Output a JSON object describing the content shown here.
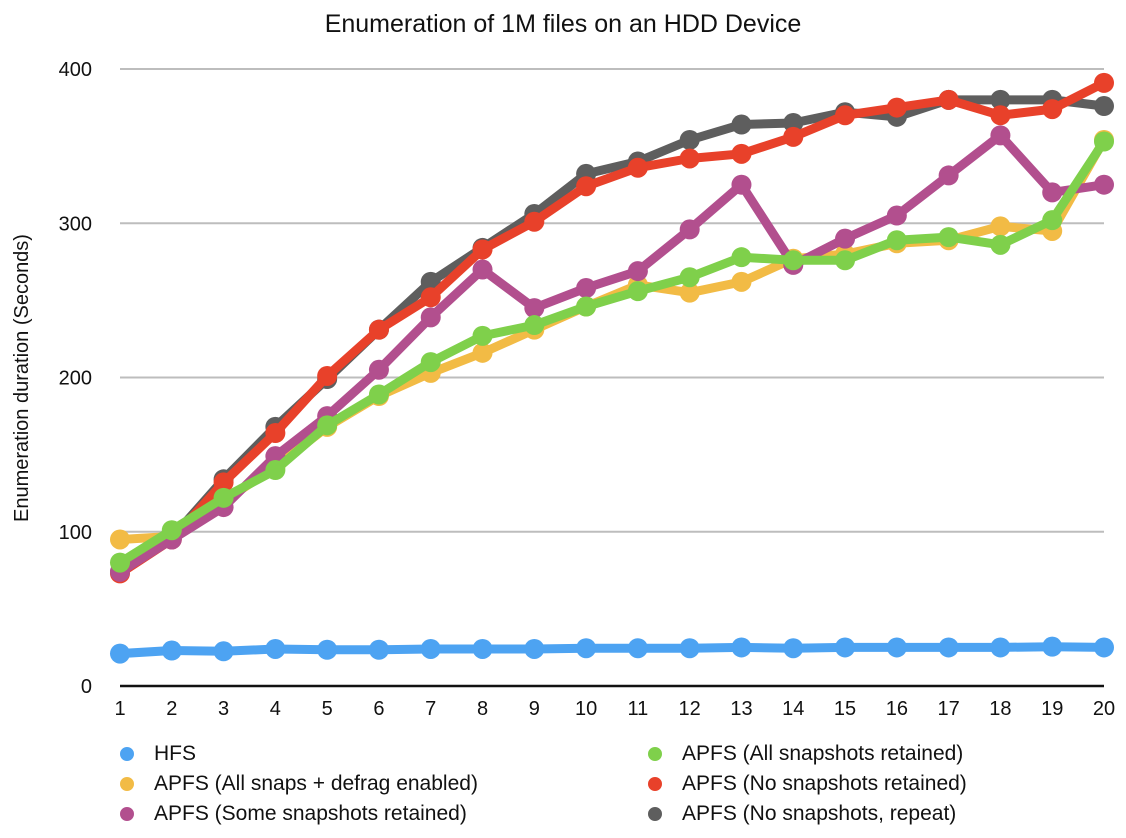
{
  "chart_data": {
    "type": "line",
    "title": "Enumeration of 1M files on an HDD Device",
    "xlabel": "",
    "ylabel": "Enumeration duration (Seconds)",
    "ylim": [
      0,
      400
    ],
    "yticks": [
      0,
      100,
      200,
      300,
      400
    ],
    "grid": true,
    "legend_position": "bottom",
    "x": [
      1,
      2,
      3,
      4,
      5,
      6,
      7,
      8,
      9,
      10,
      11,
      12,
      13,
      14,
      15,
      16,
      17,
      18,
      19,
      20
    ],
    "series": [
      {
        "name": "HFS",
        "color": "#4DA3F2",
        "values": [
          21,
          23,
          22.5,
          24,
          23.5,
          23.5,
          24,
          24,
          24,
          24.5,
          24.5,
          24.5,
          25,
          24.5,
          25,
          25,
          25,
          25,
          25.5,
          25
        ]
      },
      {
        "name": "APFS (All snaps + defrag enabled)",
        "color": "#F2BB45",
        "values": [
          95,
          97,
          120,
          142,
          168,
          188,
          203,
          216,
          231,
          246,
          260,
          255,
          262,
          277,
          280,
          287,
          289,
          298,
          295,
          354
        ]
      },
      {
        "name": "APFS (Some snapshots retained)",
        "color": "#B24F8E",
        "values": [
          74,
          95,
          116,
          149,
          175,
          205,
          239,
          270,
          245,
          258,
          269,
          296,
          325,
          273,
          290,
          305,
          331,
          357,
          320,
          325
        ]
      },
      {
        "name": "APFS (All snapshots retained)",
        "color": "#7FD04B",
        "values": [
          80,
          101,
          122,
          140,
          169,
          189,
          210,
          227,
          234,
          246,
          256,
          265,
          278,
          276,
          276,
          289,
          291,
          286,
          302,
          353
        ]
      },
      {
        "name": "APFS (No snapshots retained)",
        "color": "#E8412A",
        "values": [
          73,
          95,
          132,
          164,
          201,
          231,
          252,
          283,
          301,
          324,
          336,
          342,
          345,
          356,
          370,
          375,
          380,
          370,
          374,
          391
        ]
      },
      {
        "name": "APFS (No snapshots, repeat)",
        "color": "#5E5E5E",
        "values": [
          74,
          96,
          134,
          168,
          199,
          231,
          262,
          284,
          306,
          332,
          340,
          354,
          364,
          365,
          372,
          369,
          380,
          380,
          380,
          376
        ]
      }
    ],
    "draw_order": [
      5,
      4,
      1,
      2,
      3,
      0
    ]
  }
}
